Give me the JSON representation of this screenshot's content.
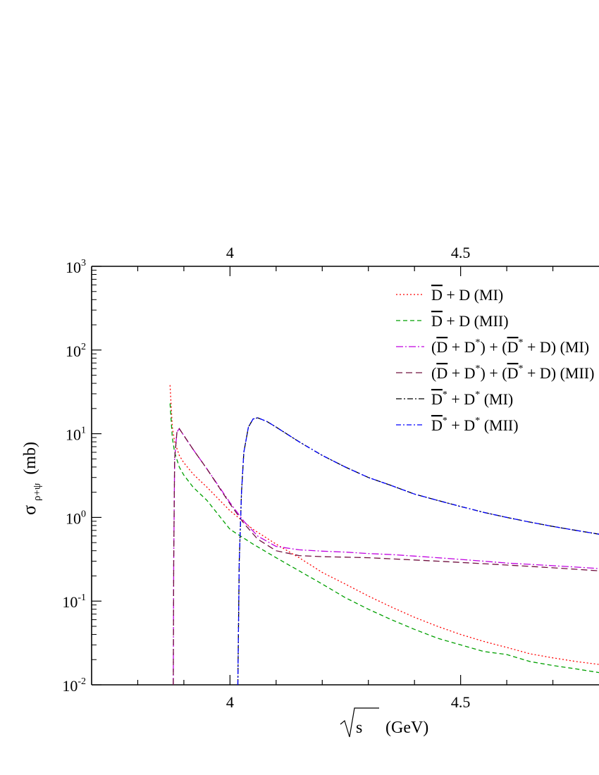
{
  "chart_data": {
    "type": "line",
    "xlabel": "√s (GeV)",
    "xlabel_unit": "(GeV)",
    "xlabel_root": "s",
    "ylabel_sigma": "σ",
    "ylabel_sub": "ρ+ψ",
    "ylabel_unit": "(mb)",
    "xlim": [
      3.7,
      4.8
    ],
    "ylim": [
      0.01,
      1000
    ],
    "yscale": "log",
    "x_ticks": [
      {
        "value": 4.0,
        "label": "4"
      },
      {
        "value": 4.5,
        "label": "4.5"
      }
    ],
    "y_ticks": [
      {
        "value": 0.01,
        "base": "10",
        "exp": "-2"
      },
      {
        "value": 0.1,
        "base": "10",
        "exp": "-1"
      },
      {
        "value": 1,
        "base": "10",
        "exp": "0"
      },
      {
        "value": 10,
        "base": "10",
        "exp": "1"
      },
      {
        "value": 100,
        "base": "10",
        "exp": "2"
      },
      {
        "value": 1000,
        "base": "10",
        "exp": "3"
      }
    ],
    "legend_position": "top-right",
    "series": [
      {
        "name": "D̄ + D (MI)",
        "color": "#ff0000",
        "dash": "2,3",
        "points": [
          [
            3.87,
            38
          ],
          [
            3.875,
            12
          ],
          [
            3.88,
            8.0
          ],
          [
            3.89,
            5.5
          ],
          [
            3.9,
            4.5
          ],
          [
            3.92,
            3.3
          ],
          [
            3.95,
            2.3
          ],
          [
            4.0,
            1.2
          ],
          [
            4.05,
            0.72
          ],
          [
            4.1,
            0.48
          ],
          [
            4.15,
            0.33
          ],
          [
            4.2,
            0.22
          ],
          [
            4.25,
            0.16
          ],
          [
            4.3,
            0.115
          ],
          [
            4.35,
            0.085
          ],
          [
            4.4,
            0.064
          ],
          [
            4.45,
            0.05
          ],
          [
            4.5,
            0.04
          ],
          [
            4.55,
            0.033
          ],
          [
            4.6,
            0.028
          ],
          [
            4.65,
            0.0235
          ],
          [
            4.7,
            0.021
          ],
          [
            4.75,
            0.019
          ],
          [
            4.8,
            0.0175
          ]
        ]
      },
      {
        "name": "D̄ + D (MII)",
        "color": "#00a000",
        "dash": "6,4",
        "points": [
          [
            3.87,
            23
          ],
          [
            3.875,
            9.0
          ],
          [
            3.88,
            6.0
          ],
          [
            3.89,
            4.0
          ],
          [
            3.9,
            3.2
          ],
          [
            3.92,
            2.3
          ],
          [
            3.95,
            1.6
          ],
          [
            4.0,
            0.72
          ],
          [
            4.05,
            0.48
          ],
          [
            4.1,
            0.33
          ],
          [
            4.15,
            0.23
          ],
          [
            4.2,
            0.16
          ],
          [
            4.25,
            0.11
          ],
          [
            4.3,
            0.08
          ],
          [
            4.35,
            0.06
          ],
          [
            4.4,
            0.046
          ],
          [
            4.45,
            0.036
          ],
          [
            4.5,
            0.03
          ],
          [
            4.55,
            0.025
          ],
          [
            4.6,
            0.023
          ],
          [
            4.65,
            0.019
          ],
          [
            4.7,
            0.017
          ],
          [
            4.75,
            0.0155
          ],
          [
            4.8,
            0.014
          ]
        ]
      },
      {
        "name": "(D̄ + D*) + (D̄* + D) (MI)",
        "color": "#c000e0",
        "dash": "10,3,2,3",
        "points": [
          [
            3.877,
            0.01
          ],
          [
            3.878,
            0.3
          ],
          [
            3.88,
            5.0
          ],
          [
            3.885,
            10.5
          ],
          [
            3.89,
            11.5
          ],
          [
            3.9,
            9.5
          ],
          [
            3.92,
            6.5
          ],
          [
            3.95,
            3.8
          ],
          [
            4.0,
            1.5
          ],
          [
            4.03,
            0.9
          ],
          [
            4.06,
            0.6
          ],
          [
            4.1,
            0.45
          ],
          [
            4.15,
            0.41
          ],
          [
            4.2,
            0.395
          ],
          [
            4.25,
            0.385
          ],
          [
            4.3,
            0.37
          ],
          [
            4.35,
            0.36
          ],
          [
            4.4,
            0.345
          ],
          [
            4.45,
            0.33
          ],
          [
            4.5,
            0.315
          ],
          [
            4.55,
            0.3
          ],
          [
            4.6,
            0.285
          ],
          [
            4.65,
            0.275
          ],
          [
            4.7,
            0.265
          ],
          [
            4.75,
            0.255
          ],
          [
            4.8,
            0.245
          ]
        ]
      },
      {
        "name": "(D̄ + D*) + (D̄* + D) (MII)",
        "color": "#70103f",
        "dash": "9,5",
        "points": [
          [
            3.877,
            0.01
          ],
          [
            3.878,
            0.3
          ],
          [
            3.88,
            5.0
          ],
          [
            3.885,
            10.5
          ],
          [
            3.89,
            11.5
          ],
          [
            3.9,
            9.5
          ],
          [
            3.92,
            6.5
          ],
          [
            3.95,
            3.8
          ],
          [
            4.0,
            1.45
          ],
          [
            4.03,
            0.85
          ],
          [
            4.06,
            0.55
          ],
          [
            4.1,
            0.4
          ],
          [
            4.15,
            0.35
          ],
          [
            4.2,
            0.34
          ],
          [
            4.25,
            0.335
          ],
          [
            4.3,
            0.33
          ],
          [
            4.35,
            0.32
          ],
          [
            4.4,
            0.31
          ],
          [
            4.45,
            0.3
          ],
          [
            4.5,
            0.29
          ],
          [
            4.55,
            0.28
          ],
          [
            4.6,
            0.27
          ],
          [
            4.65,
            0.26
          ],
          [
            4.7,
            0.25
          ],
          [
            4.75,
            0.24
          ],
          [
            4.8,
            0.23
          ]
        ]
      },
      {
        "name": "D̄* + D* (MI)",
        "color": "#000000",
        "dash": "8,3,2,3",
        "points": [
          [
            4.017,
            0.01
          ],
          [
            4.02,
            0.3
          ],
          [
            4.025,
            2.0
          ],
          [
            4.03,
            6.0
          ],
          [
            4.04,
            12.0
          ],
          [
            4.05,
            15.0
          ],
          [
            4.06,
            15.5
          ],
          [
            4.08,
            14.0
          ],
          [
            4.1,
            12.0
          ],
          [
            4.15,
            8.0
          ],
          [
            4.2,
            5.5
          ],
          [
            4.25,
            4.0
          ],
          [
            4.3,
            3.0
          ],
          [
            4.35,
            2.4
          ],
          [
            4.4,
            1.9
          ],
          [
            4.45,
            1.6
          ],
          [
            4.5,
            1.35
          ],
          [
            4.55,
            1.15
          ],
          [
            4.6,
            1.0
          ],
          [
            4.65,
            0.88
          ],
          [
            4.7,
            0.78
          ],
          [
            4.75,
            0.7
          ],
          [
            4.8,
            0.63
          ]
        ]
      },
      {
        "name": "D̄* + D* (MII)",
        "color": "#0000ff",
        "dash": "7,3,2,3",
        "points": [
          [
            4.017,
            0.01
          ],
          [
            4.02,
            0.3
          ],
          [
            4.025,
            2.0
          ],
          [
            4.03,
            6.0
          ],
          [
            4.04,
            12.0
          ],
          [
            4.05,
            15.0
          ],
          [
            4.06,
            15.5
          ],
          [
            4.08,
            14.0
          ],
          [
            4.1,
            12.0
          ],
          [
            4.15,
            8.0
          ],
          [
            4.2,
            5.5
          ],
          [
            4.25,
            4.0
          ],
          [
            4.3,
            3.0
          ],
          [
            4.35,
            2.4
          ],
          [
            4.4,
            1.9
          ],
          [
            4.45,
            1.6
          ],
          [
            4.5,
            1.35
          ],
          [
            4.55,
            1.15
          ],
          [
            4.6,
            1.0
          ],
          [
            4.65,
            0.88
          ],
          [
            4.7,
            0.78
          ],
          [
            4.75,
            0.7
          ],
          [
            4.8,
            0.63
          ]
        ]
      }
    ]
  },
  "legend": [
    {
      "parts": [
        {
          "t": "D",
          "bar": true
        },
        {
          "t": " + D (MI)"
        }
      ]
    },
    {
      "parts": [
        {
          "t": "D",
          "bar": true
        },
        {
          "t": " + D (MII)"
        }
      ]
    },
    {
      "parts": [
        {
          "t": "("
        },
        {
          "t": "D",
          "bar": true
        },
        {
          "t": " + D"
        },
        {
          "t": "*",
          "sup": true
        },
        {
          "t": ") + ("
        },
        {
          "t": "D",
          "bar": true
        },
        {
          "t": "*",
          "sup": true
        },
        {
          "t": " + D) (MI)"
        }
      ]
    },
    {
      "parts": [
        {
          "t": "("
        },
        {
          "t": "D",
          "bar": true
        },
        {
          "t": " + D"
        },
        {
          "t": "*",
          "sup": true
        },
        {
          "t": ") + ("
        },
        {
          "t": "D",
          "bar": true
        },
        {
          "t": "*",
          "sup": true
        },
        {
          "t": " + D) (MII)"
        }
      ]
    },
    {
      "parts": [
        {
          "t": "D",
          "bar": true
        },
        {
          "t": "*",
          "sup": true
        },
        {
          "t": " + D"
        },
        {
          "t": "*",
          "sup": true
        },
        {
          "t": " (MI)"
        }
      ]
    },
    {
      "parts": [
        {
          "t": "D",
          "bar": true
        },
        {
          "t": "*",
          "sup": true
        },
        {
          "t": " + D"
        },
        {
          "t": "*",
          "sup": true
        },
        {
          "t": " (MII)"
        }
      ]
    }
  ]
}
